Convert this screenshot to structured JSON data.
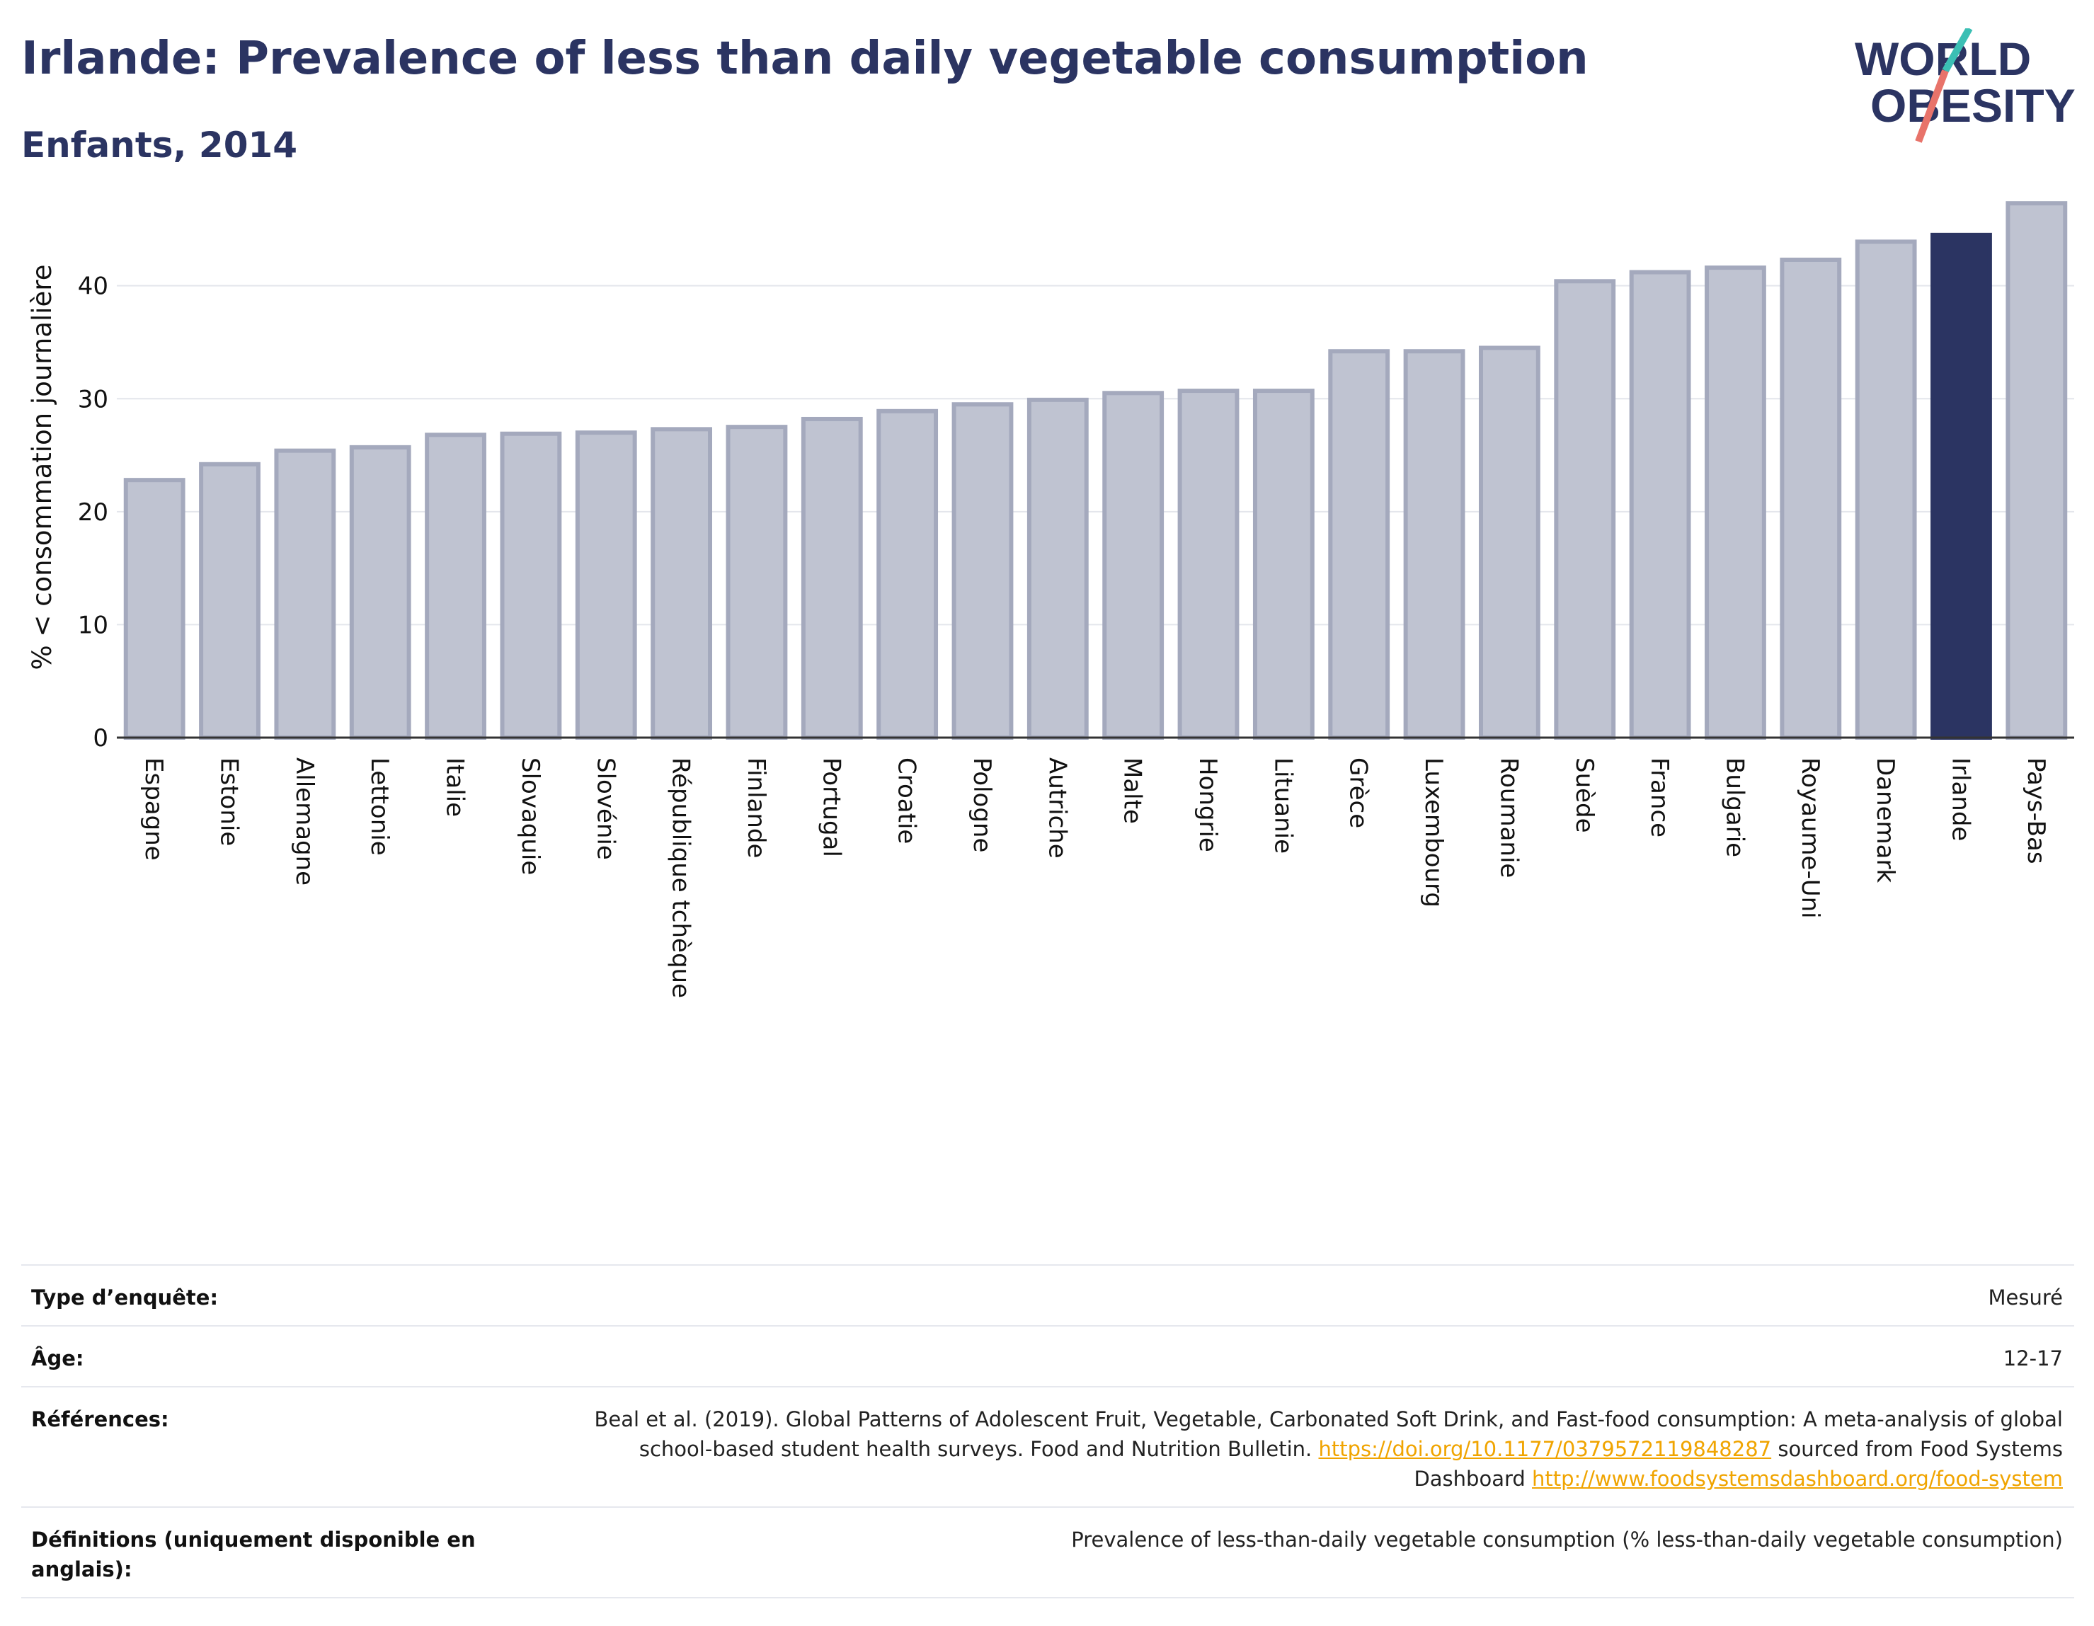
{
  "header": {
    "title": "Irlande: Prevalence of less than daily vegetable consumption",
    "subtitle": "Enfants, 2014"
  },
  "logo": {
    "line1": "WORLD",
    "line2": "OBESITY",
    "accent_colors": [
      "#3bbfb4",
      "#e8736a"
    ]
  },
  "colors": {
    "highlight": "#2b3462",
    "bar": "#bfc3d1",
    "bar_stroke": "#a4a9bd",
    "link": "#f0a400"
  },
  "chart_data": {
    "type": "bar",
    "ylabel": "% < consommation journalière",
    "ylim": [
      0,
      48
    ],
    "yticks": [
      0,
      10,
      20,
      30,
      40
    ],
    "grid": true,
    "highlight": "Irlande",
    "categories": [
      "Espagne",
      "Estonie",
      "Allemagne",
      "Lettonie",
      "Italie",
      "Slovaquie",
      "Slovénie",
      "République tchèque",
      "Finlande",
      "Portugal",
      "Croatie",
      "Pologne",
      "Autriche",
      "Malte",
      "Hongrie",
      "Lituanie",
      "Grèce",
      "Luxembourg",
      "Roumanie",
      "Suède",
      "France",
      "Bulgarie",
      "Royaume-Uni",
      "Danemark",
      "Irlande",
      "Pays-Bas"
    ],
    "values": [
      22.8,
      24.2,
      25.4,
      25.7,
      26.8,
      26.9,
      27.0,
      27.3,
      27.5,
      28.2,
      28.9,
      29.5,
      29.9,
      30.5,
      30.7,
      30.7,
      34.2,
      34.2,
      34.5,
      40.4,
      41.2,
      41.6,
      42.3,
      43.9,
      44.5,
      47.3
    ]
  },
  "meta": {
    "survey_label": "Type d’enquête:",
    "survey_value": "Mesuré",
    "age_label": "Âge:",
    "age_value": "12-17",
    "ref_label": "Références:",
    "ref_text1": "Beal et al. (2019). Global Patterns of Adolescent Fruit, Vegetable, Carbonated Soft Drink, and Fast-food consumption: A meta-analysis of global school-based student health surveys. Food and Nutrition Bulletin. ",
    "ref_link1": "https://doi.org/10.1177/0379572119848287",
    "ref_text2": " sourced from Food Systems Dashboard ",
    "ref_link2": "http://www.foodsystemsdashboard.org/food-system",
    "def_label": "Définitions (uniquement disponible en anglais):",
    "def_value": "Prevalence of less-than-daily vegetable consumption (% less-than-daily vegetable consumption)"
  }
}
